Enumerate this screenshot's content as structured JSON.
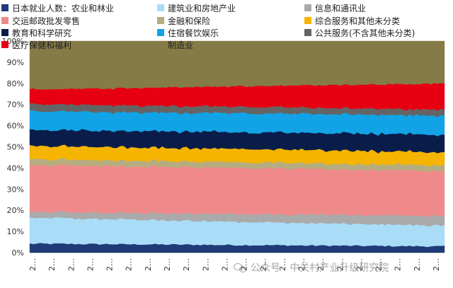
{
  "chart_data": {
    "type": "area",
    "stacked": true,
    "ylim": [
      0,
      100
    ],
    "y_ticks": [
      "0%",
      "10%",
      "20%",
      "30%",
      "40%",
      "50%",
      "60%",
      "70%",
      "80%",
      "90%",
      "100%"
    ],
    "x_tick_label": "2…",
    "x_tick_count": 22,
    "n_points": 120,
    "legend_placement": "top",
    "grid": false,
    "series": [
      {
        "name": "日本就业人数：农业和林业",
        "color": "#1f3a78",
        "start": 4.3,
        "end": 3.0,
        "jitter": 0.35
      },
      {
        "name": "建筑业和房地产业",
        "color": "#a9dcf7",
        "start": 12.3,
        "end": 9.7,
        "jitter": 0.4
      },
      {
        "name": "信息和通讯业",
        "color": "#aaaaaa",
        "start": 2.7,
        "end": 4.6,
        "jitter": 0.3
      },
      {
        "name": "交运邮政批发零售",
        "color": "#f08a8a",
        "start": 22.4,
        "end": 21.2,
        "jitter": 0.5
      },
      {
        "name": "金融和保险",
        "color": "#b5ad7f",
        "start": 2.8,
        "end": 2.6,
        "jitter": 0.25
      },
      {
        "name": "综合服务和其他未分类",
        "color": "#f5b400",
        "start": 6.2,
        "end": 6.3,
        "jitter": 0.4
      },
      {
        "name": "教育和科学研究",
        "color": "#0a1d4a",
        "start": 7.6,
        "end": 8.4,
        "jitter": 0.45
      },
      {
        "name": "住宿餐饮娱乐",
        "color": "#11a3e6",
        "start": 8.8,
        "end": 9.0,
        "jitter": 0.45
      },
      {
        "name": "公共服务(不含其他未分类)",
        "color": "#646464",
        "start": 3.4,
        "end": 2.8,
        "jitter": 0.3
      },
      {
        "name": "医疗保健和福利",
        "color": "#e60012",
        "start": 6.9,
        "end": 12.4,
        "jitter": 0.45
      },
      {
        "name": "制造业",
        "color": "#857b46",
        "start": 22.9,
        "end": 20.0,
        "jitter": 0.3
      }
    ]
  },
  "watermark": "公众号 · 中关村产业升级研究院"
}
